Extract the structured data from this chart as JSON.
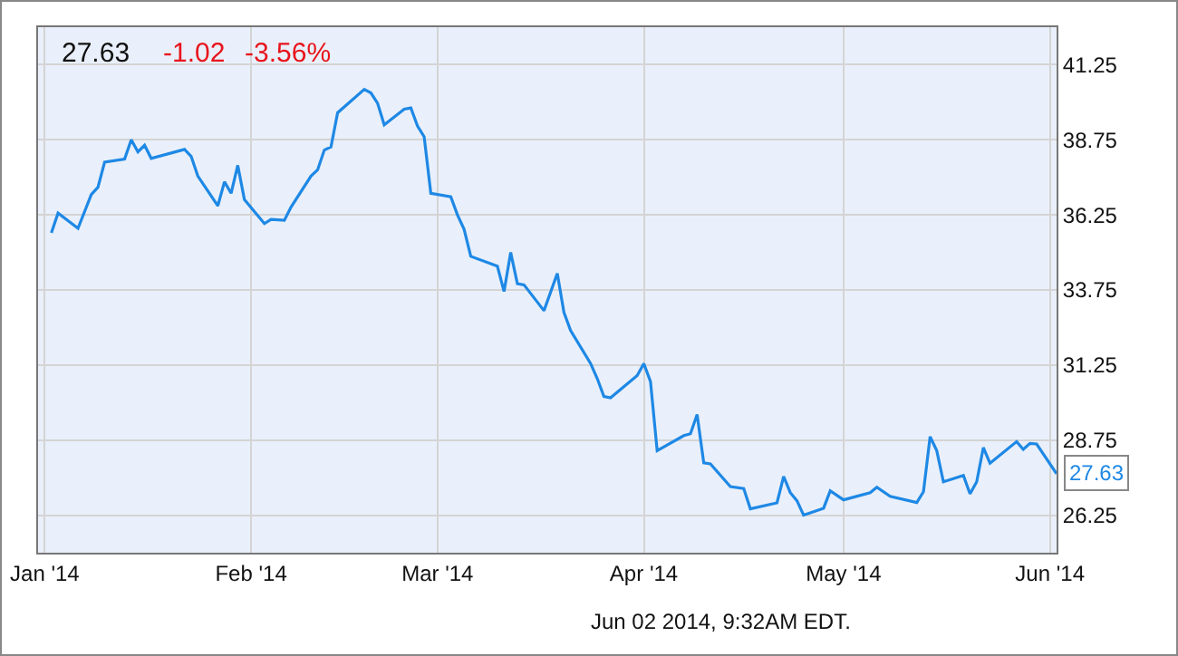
{
  "chart_data": {
    "type": "line",
    "x": [
      "2014-01-02",
      "2014-01-03",
      "2014-01-06",
      "2014-01-08",
      "2014-01-09",
      "2014-01-10",
      "2014-01-13",
      "2014-01-14",
      "2014-01-15",
      "2014-01-16",
      "2014-01-17",
      "2014-01-22",
      "2014-01-23",
      "2014-01-24",
      "2014-01-27",
      "2014-01-28",
      "2014-01-29",
      "2014-01-30",
      "2014-01-31",
      "2014-02-03",
      "2014-02-04",
      "2014-02-06",
      "2014-02-07",
      "2014-02-10",
      "2014-02-11",
      "2014-02-12",
      "2014-02-13",
      "2014-02-14",
      "2014-02-18",
      "2014-02-19",
      "2014-02-20",
      "2014-02-21",
      "2014-02-24",
      "2014-02-25",
      "2014-02-26",
      "2014-02-27",
      "2014-02-28",
      "2014-03-03",
      "2014-03-04",
      "2014-03-05",
      "2014-03-06",
      "2014-03-10",
      "2014-03-11",
      "2014-03-12",
      "2014-03-13",
      "2014-03-14",
      "2014-03-17",
      "2014-03-19",
      "2014-03-20",
      "2014-03-21",
      "2014-03-24",
      "2014-03-25",
      "2014-03-26",
      "2014-03-27",
      "2014-03-31",
      "2014-04-01",
      "2014-04-02",
      "2014-04-03",
      "2014-04-07",
      "2014-04-08",
      "2014-04-09",
      "2014-04-10",
      "2014-04-11",
      "2014-04-14",
      "2014-04-16",
      "2014-04-17",
      "2014-04-21",
      "2014-04-22",
      "2014-04-23",
      "2014-04-24",
      "2014-04-25",
      "2014-04-28",
      "2014-04-29",
      "2014-05-01",
      "2014-05-05",
      "2014-05-06",
      "2014-05-08",
      "2014-05-12",
      "2014-05-13",
      "2014-05-14",
      "2014-05-15",
      "2014-05-16",
      "2014-05-19",
      "2014-05-20",
      "2014-05-21",
      "2014-05-22",
      "2014-05-23",
      "2014-05-27",
      "2014-05-28",
      "2014-05-29",
      "2014-05-30",
      "2014-06-02"
    ],
    "series": [
      {
        "color": "#1e88e5",
        "values": [
          35.65,
          36.31,
          35.8,
          36.93,
          37.17,
          38.01,
          38.11,
          38.75,
          38.35,
          38.57,
          38.13,
          38.43,
          38.2,
          37.54,
          36.55,
          37.35,
          36.97,
          37.9,
          36.76,
          35.96,
          36.1,
          36.07,
          36.51,
          37.54,
          37.75,
          38.41,
          38.51,
          39.65,
          40.43,
          40.31,
          39.97,
          39.25,
          39.77,
          39.81,
          39.21,
          38.85,
          36.97,
          36.85,
          36.25,
          35.77,
          34.87,
          34.54,
          33.7,
          35.0,
          33.96,
          33.92,
          33.06,
          34.3,
          33.0,
          32.4,
          31.3,
          30.8,
          30.2,
          30.16,
          30.9,
          31.3,
          30.7,
          28.4,
          28.9,
          28.96,
          29.6,
          27.99,
          27.96,
          27.2,
          27.14,
          26.46,
          26.66,
          27.54,
          27.0,
          26.73,
          26.25,
          26.48,
          27.06,
          26.76,
          27.0,
          27.18,
          26.88,
          26.67,
          27.03,
          28.86,
          28.4,
          27.36,
          27.57,
          26.96,
          27.36,
          28.5,
          27.98,
          28.7,
          28.44,
          28.64,
          28.62,
          27.63
        ]
      }
    ],
    "xlim": [
      "2013-12-31",
      "2014-06-02"
    ],
    "xticks": [
      {
        "value": "2014-01-01",
        "label": "Jan '14"
      },
      {
        "value": "2014-02-01",
        "label": "Feb '14"
      },
      {
        "value": "2014-03-01",
        "label": "Mar '14"
      },
      {
        "value": "2014-04-01",
        "label": "Apr '14"
      },
      {
        "value": "2014-05-01",
        "label": "May '14"
      },
      {
        "value": "2014-06-01",
        "label": "Jun '14"
      }
    ],
    "ylim": [
      25.0,
      42.5
    ],
    "yticks": [
      26.25,
      28.75,
      31.25,
      33.75,
      36.25,
      38.75,
      41.25
    ],
    "grid": true,
    "marker": "none",
    "line_style": "solid",
    "annotations": [
      "27.63",
      "-1.02",
      "-3.56%",
      {
        "text": "27.63",
        "x": "2014-06-02",
        "y": 27.63
      },
      "Jun 02 2014, 9:32AM EDT."
    ]
  }
}
